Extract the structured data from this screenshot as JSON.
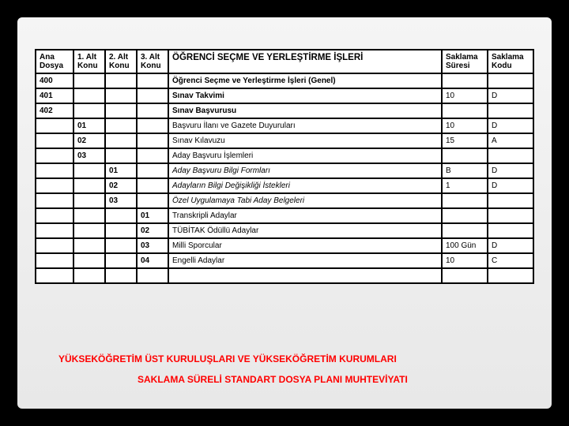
{
  "headers": {
    "ana": "Ana Dosya",
    "alt1": "1. Alt Konu",
    "alt2": "2. Alt Konu",
    "alt3": "3. Alt Konu",
    "title": "ÖĞRENCİ SEÇME VE YERLEŞTİRME İŞLERİ",
    "sak_suresi": "Saklama Süresi",
    "sak_kodu": "Saklama Kodu"
  },
  "rows": [
    {
      "ana": "400",
      "alt1": "",
      "alt2": "",
      "alt3": "",
      "desc": "Öğrenci Seçme ve Yerleştirme İşleri (Genel)",
      "bold": true,
      "sure": "",
      "kod": ""
    },
    {
      "ana": "401",
      "alt1": "",
      "alt2": "",
      "alt3": "",
      "desc": "Sınav Takvimi",
      "bold": true,
      "sure": "10",
      "kod": "D"
    },
    {
      "ana": "402",
      "alt1": "",
      "alt2": "",
      "alt3": "",
      "desc": "Sınav Başvurusu",
      "bold": true,
      "sure": "",
      "kod": ""
    },
    {
      "ana": "",
      "alt1": "01",
      "alt2": "",
      "alt3": "",
      "desc": "Başvuru İlanı ve Gazete Duyuruları",
      "sure": "10",
      "kod": "D"
    },
    {
      "ana": "",
      "alt1": "02",
      "alt2": "",
      "alt3": "",
      "desc": "Sınav Kılavuzu",
      "sure": "15",
      "kod": "A"
    },
    {
      "ana": "",
      "alt1": "03",
      "alt2": "",
      "alt3": "",
      "desc": "Aday Başvuru İşlemleri",
      "sure": "",
      "kod": ""
    },
    {
      "ana": "",
      "alt1": "",
      "alt2": "01",
      "alt3": "",
      "desc": "Aday Başvuru Bilgi Formları",
      "italic": true,
      "sure": "B",
      "kod": "D"
    },
    {
      "ana": "",
      "alt1": "",
      "alt2": "02",
      "alt3": "",
      "desc": "Adayların Bilgi Değişikliği İstekleri",
      "italic": true,
      "sure": "1",
      "kod": "D"
    },
    {
      "ana": "",
      "alt1": "",
      "alt2": "03",
      "alt3": "",
      "desc": "Özel Uygulamaya Tabi Aday Belgeleri",
      "italic": true,
      "sure": "",
      "kod": ""
    },
    {
      "ana": "",
      "alt1": "",
      "alt2": "",
      "alt3": "01",
      "desc": "Transkripli Adaylar",
      "sure": "",
      "kod": ""
    },
    {
      "ana": "",
      "alt1": "",
      "alt2": "",
      "alt3": "02",
      "desc": "TÜBİTAK Ödüllü Adaylar",
      "sure": "",
      "kod": ""
    },
    {
      "ana": "",
      "alt1": "",
      "alt2": "",
      "alt3": "03",
      "desc": "Milli Sporcular",
      "sure": "100 Gün",
      "kod": "D"
    },
    {
      "ana": "",
      "alt1": "",
      "alt2": "",
      "alt3": "04",
      "desc": "Engelli Adaylar",
      "sure": "10",
      "kod": "C"
    }
  ],
  "background_text": {
    "line1": "YÜKSEKÖĞRETİM ÜST KURULUŞLARI VE YÜKSEKÖĞRETİM KURUMLARI",
    "line2": "SAKLAMA SÜRELİ STANDART DOSYA PLANI MUHTEVİYATI"
  },
  "style": {
    "slide_bg_top": "#f5f5f5",
    "slide_bg_bottom": "#e8e8e8",
    "border_color": "#000000",
    "bg_text_color": "#ff0000",
    "header_fontsize": 10,
    "title_fontsize": 11.5,
    "body_fontsize": 10,
    "col_widths": {
      "ana": 48,
      "alt": 40,
      "sak": 58
    }
  }
}
